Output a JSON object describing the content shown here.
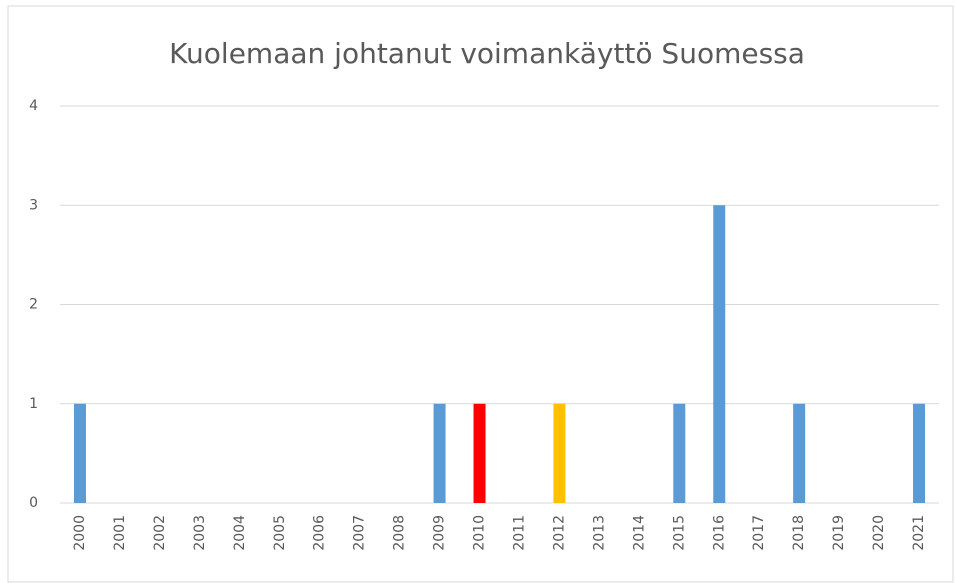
{
  "chart_data": {
    "type": "bar",
    "title": "Kuolemaan johtanut voimankäyttö Suomessa",
    "categories": [
      "2000",
      "2001",
      "2002",
      "2003",
      "2004",
      "2005",
      "2006",
      "2007",
      "2008",
      "2009",
      "2010",
      "2011",
      "2012",
      "2013",
      "2014",
      "2015",
      "2016",
      "2017",
      "2018",
      "2019",
      "2020",
      "2021"
    ],
    "values": [
      1,
      0,
      0,
      0,
      0,
      0,
      0,
      0,
      0,
      1,
      1,
      0,
      1,
      0,
      0,
      1,
      3,
      0,
      1,
      0,
      0,
      1
    ],
    "colors": [
      "#5b9bd5",
      "#5b9bd5",
      "#5b9bd5",
      "#5b9bd5",
      "#5b9bd5",
      "#5b9bd5",
      "#5b9bd5",
      "#5b9bd5",
      "#5b9bd5",
      "#5b9bd5",
      "#ff0000",
      "#5b9bd5",
      "#ffc000",
      "#5b9bd5",
      "#5b9bd5",
      "#5b9bd5",
      "#5b9bd5",
      "#5b9bd5",
      "#5b9bd5",
      "#5b9bd5",
      "#5b9bd5",
      "#5b9bd5"
    ],
    "ylim": [
      0,
      4
    ],
    "yticks": [
      0,
      1,
      2,
      3,
      4
    ],
    "grid": true
  }
}
